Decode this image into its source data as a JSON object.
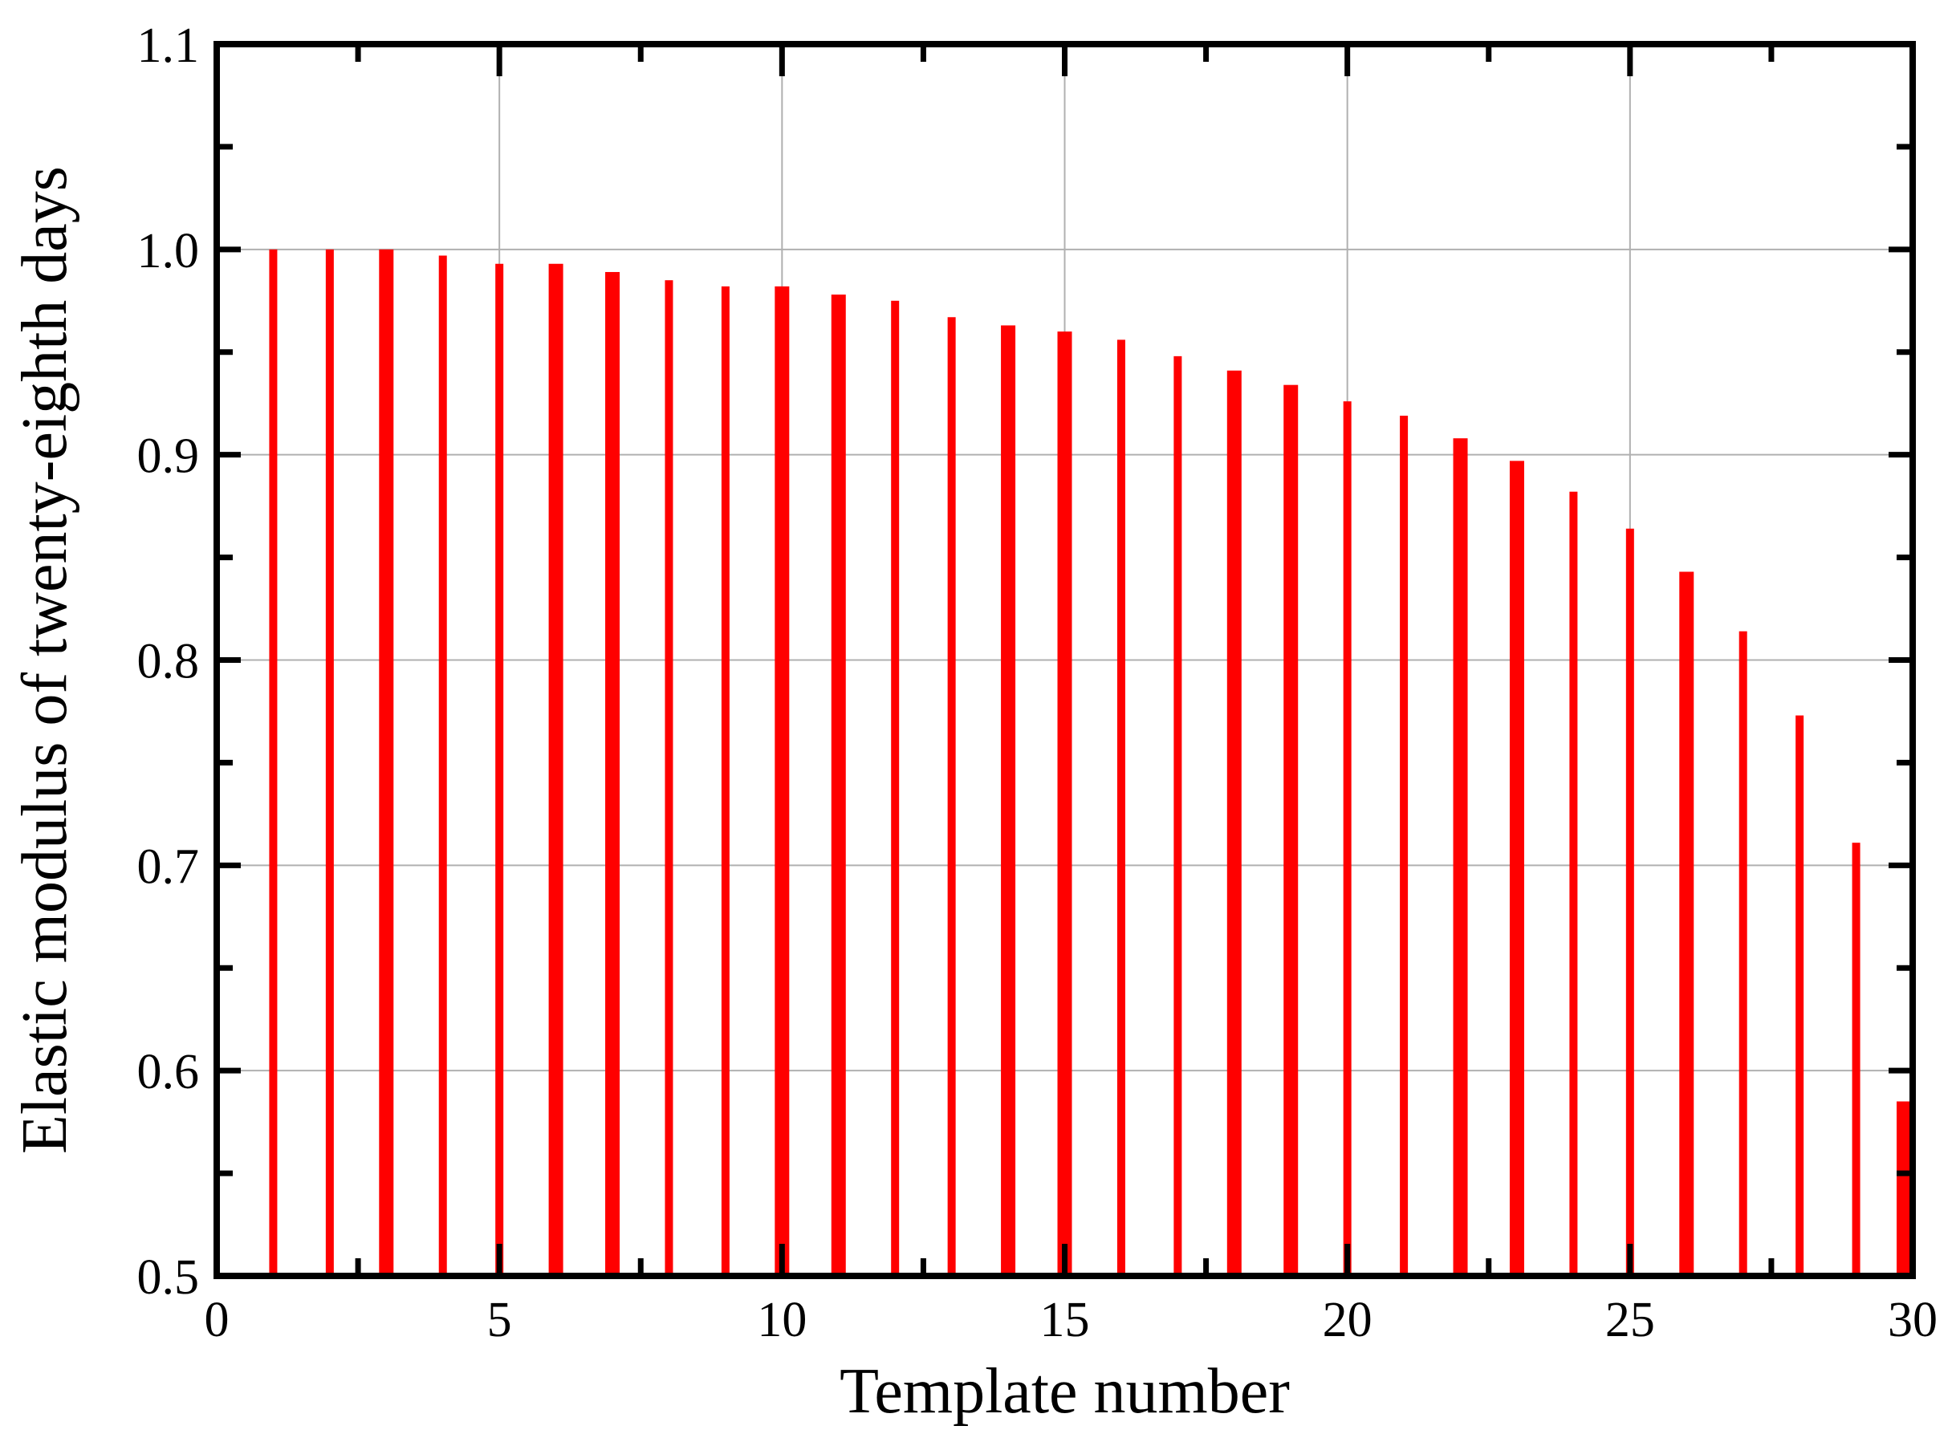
{
  "chart_data": {
    "type": "bar",
    "title": "",
    "xlabel": "Template number",
    "ylabel": "Elastic modulus of twenty-eighth days",
    "xlim": [
      0,
      30
    ],
    "ylim": [
      0.5,
      1.1
    ],
    "x_ticks": [
      "0",
      "5",
      "10",
      "15",
      "20",
      "25",
      "30"
    ],
    "y_ticks": [
      "0.5",
      "0.6",
      "0.7",
      "0.8",
      "0.9",
      "1.0",
      "1.1"
    ],
    "grid": true,
    "legend": "none",
    "bar_color": "#ff0000",
    "x": [
      1,
      2,
      3,
      4,
      5,
      6,
      7,
      8,
      9,
      10,
      11,
      12,
      13,
      14,
      15,
      16,
      17,
      18,
      19,
      20,
      21,
      22,
      23,
      24,
      25,
      26,
      27,
      28,
      29,
      30
    ],
    "values": [
      1.0,
      1.0,
      1.0,
      0.997,
      0.993,
      0.993,
      0.989,
      0.985,
      0.982,
      0.982,
      0.978,
      0.975,
      0.967,
      0.963,
      0.96,
      0.956,
      0.948,
      0.941,
      0.934,
      0.926,
      0.919,
      0.908,
      0.897,
      0.882,
      0.864,
      0.843,
      0.814,
      0.773,
      0.711,
      0.585
    ]
  }
}
